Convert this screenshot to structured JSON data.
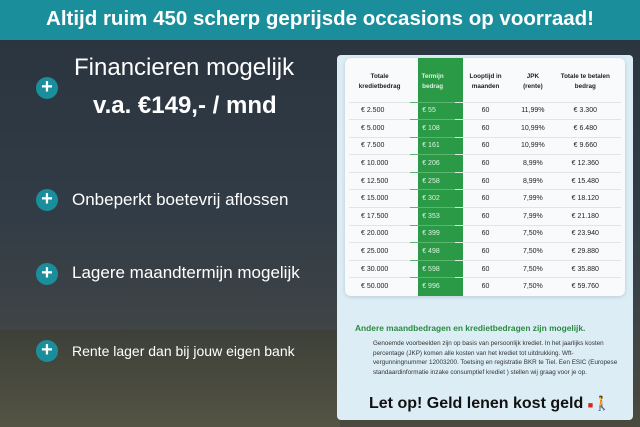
{
  "banner": "Altijd ruim 450 scherp geprijsde occasions op voorraad!",
  "features": [
    {
      "line1": "Financieren mogelijk",
      "line2": "v.a. €149,- / mnd"
    },
    {
      "line1": "Onbeperkt boetevrij aflossen"
    },
    {
      "line1": "Lagere maandtermijn mogelijk"
    },
    {
      "line1": "Rente lager dan bij jouw eigen bank"
    }
  ],
  "table": {
    "headers": [
      "Totale kredietbedrag",
      "Termijn bedrag",
      "Looptijd in maanden",
      "JPK (rente)",
      "Totale te betalen bedrag"
    ],
    "rows": [
      [
        "€ 2.500",
        "€ 55",
        "60",
        "11,99%",
        "€ 3.300"
      ],
      [
        "€ 5.000",
        "€ 108",
        "60",
        "10,99%",
        "€ 6.480"
      ],
      [
        "€ 7.500",
        "€ 161",
        "60",
        "10,99%",
        "€ 9.660"
      ],
      [
        "€ 10.000",
        "€ 206",
        "60",
        "8,99%",
        "€ 12.360"
      ],
      [
        "€ 12.500",
        "€ 258",
        "60",
        "8,99%",
        "€ 15.480"
      ],
      [
        "€ 15.000",
        "€ 302",
        "60",
        "7,99%",
        "€ 18.120"
      ],
      [
        "€ 17.500",
        "€ 353",
        "60",
        "7,99%",
        "€ 21.180"
      ],
      [
        "€ 20.000",
        "€ 399",
        "60",
        "7,50%",
        "€ 23.940"
      ],
      [
        "€ 25.000",
        "€ 498",
        "60",
        "7,50%",
        "€ 29.880"
      ],
      [
        "€ 30.000",
        "€ 598",
        "60",
        "7,50%",
        "€ 35.880"
      ],
      [
        "€ 50.000",
        "€ 996",
        "60",
        "7,50%",
        "€ 59.760"
      ]
    ]
  },
  "note_title": "Andere maandbedragen en kredietbedragen zijn mogelijk.",
  "note_text": "Genoemde voorbeelden zijn op basis van persoonlijk krediet. In het jaarlijks kosten percentage (JKP) komen alle kosten van het krediet tot uitdrukking. Wft-vergunningnummer 12003200. Toetsing en registratie BKR te Tiel. Een ESIC (Europese standaardinformatie inzake consumptief krediet ) stellen wij graag voor je op.",
  "warning": "Let op! Geld lenen kost geld",
  "colors": {
    "teal": "#1b8e9b",
    "green": "#2a9a47"
  }
}
